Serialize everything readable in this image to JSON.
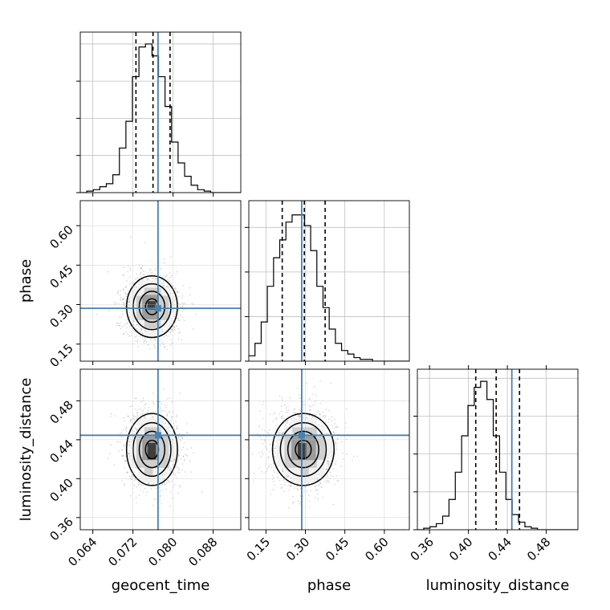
{
  "chart_data": {
    "type": "corner",
    "parameters": [
      "geocent_time",
      "phase",
      "luminosity_distance"
    ],
    "truth": {
      "geocent_time": 0.077,
      "phase": 0.286,
      "luminosity_distance": 0.4446
    },
    "colors": {
      "truth": "#4682b4",
      "hist": "#000000",
      "grid": "#bfbfbf",
      "points": "#808080"
    },
    "grid": true,
    "diagonal": [
      {
        "name": "geocent_time",
        "xlim": [
          0.0615,
          0.0935
        ],
        "xticks": [
          0.064,
          0.072,
          0.08,
          0.088
        ],
        "tick_labels": [
          "0.064",
          "0.072",
          "0.080",
          "0.088"
        ],
        "bin_width": 0.0013,
        "bins_start": 0.0615,
        "counts": [
          0,
          1,
          2,
          4,
          6,
          12,
          30,
          48,
          78,
          98,
          100,
          92,
          78,
          58,
          34,
          20,
          11,
          5,
          2,
          1,
          0,
          0,
          0,
          0,
          0
        ],
        "ymax": 108,
        "quantiles": [
          0.0726,
          0.076,
          0.0794
        ]
      },
      {
        "name": "phase",
        "xlim": [
          0.085,
          0.695
        ],
        "xticks": [
          0.15,
          0.3,
          0.45,
          0.6
        ],
        "tick_labels": [
          "0.15",
          "0.30",
          "0.45",
          "0.60"
        ],
        "bin_width": 0.0235,
        "bins_start": 0.085,
        "counts": [
          3,
          10,
          22,
          42,
          58,
          68,
          78,
          82,
          82,
          76,
          62,
          42,
          30,
          18,
          10,
          6,
          4,
          2,
          1,
          1,
          0,
          0,
          0,
          0,
          0,
          0
        ],
        "ymax": 90,
        "quantiles": [
          0.212,
          0.296,
          0.375
        ]
      },
      {
        "name": "luminosity_distance",
        "xlim": [
          0.3475,
          0.5125
        ],
        "xticks": [
          0.36,
          0.4,
          0.44,
          0.48
        ],
        "tick_labels": [
          "0.36",
          "0.40",
          "0.44",
          "0.48"
        ],
        "bin_width": 0.0065,
        "bins_start": 0.3475,
        "counts": [
          0,
          1,
          2,
          4,
          9,
          20,
          38,
          62,
          82,
          94,
          98,
          86,
          62,
          38,
          20,
          10,
          5,
          2,
          1,
          0,
          0,
          0,
          0,
          0,
          0,
          0
        ],
        "ymax": 106,
        "quantiles": [
          0.4075,
          0.4285,
          0.4525
        ]
      }
    ],
    "pairs": [
      {
        "x": "geocent_time",
        "y": "phase",
        "center": [
          0.0758,
          0.292
        ],
        "sd": [
          0.0026,
          0.06
        ],
        "ylim": [
          0.085,
          0.695
        ],
        "yticks": [
          0.15,
          0.3,
          0.45,
          0.6
        ],
        "ytick_labels": [
          "0.15",
          "0.30",
          "0.45",
          "0.60"
        ]
      },
      {
        "x": "geocent_time",
        "y": "luminosity_distance",
        "center": [
          0.0758,
          0.43
        ],
        "sd": [
          0.0026,
          0.019
        ],
        "ylim": [
          0.3475,
          0.5125
        ],
        "yticks": [
          0.36,
          0.4,
          0.44,
          0.48
        ],
        "ytick_labels": [
          "0.36",
          "0.40",
          "0.44",
          "0.48"
        ]
      },
      {
        "x": "phase",
        "y": "luminosity_distance",
        "center": [
          0.292,
          0.43
        ],
        "sd": [
          0.06,
          0.019
        ],
        "ylim": [
          0.3475,
          0.5125
        ]
      }
    ],
    "xlabel": {
      "0": "geocent_time",
      "1": "phase",
      "2": "luminosity_distance"
    },
    "ylabel": {
      "1": "phase",
      "2": "luminosity_distance"
    }
  }
}
